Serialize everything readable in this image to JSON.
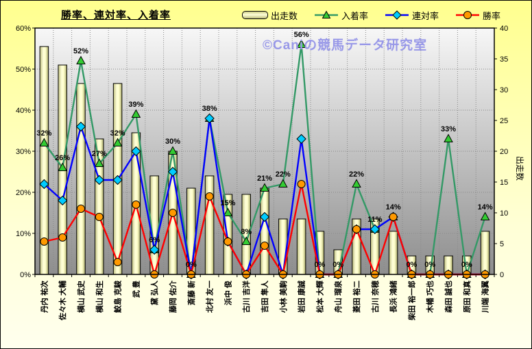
{
  "title": "勝率、連対率、入着率",
  "watermark": "©Caniの競馬データ研究室",
  "legend": {
    "items": [
      {
        "label": "出走数",
        "marker": "bar"
      },
      {
        "label": "入着率",
        "marker": "triangle"
      },
      {
        "label": "連対率",
        "marker": "diamond"
      },
      {
        "label": "勝率",
        "marker": "circle"
      }
    ]
  },
  "colors": {
    "bar_fill": "#ffffcc",
    "bar_edge": "#000000",
    "place_line": "#339966",
    "place_marker": "#33cc33",
    "quinella_line": "#0000ff",
    "quinella_marker": "#00ccff",
    "win_line": "#ff0000",
    "win_marker": "#ff9900",
    "plot_bg_top": "#f7f7f7",
    "plot_bg_bottom": "#8e8e8e",
    "page_bg": "#ffff99",
    "watermark": "#9898e8",
    "gridline": "#888888"
  },
  "chart_data": {
    "type": "bar",
    "subtype": "combo-bar-and-lines",
    "title": "勝率、連対率、入着率",
    "legend_position": "top",
    "grid": true,
    "categories": [
      "丹内 祐次",
      "佐々木 大輔",
      "横山 武史",
      "横山 和生",
      "鮫島 克駿",
      "武 豊",
      "黛 弘人",
      "藤岡 佑介",
      "斎藤 新",
      "北村 友一",
      "浜中 俊",
      "古川 吉洋",
      "吉田 隼人",
      "小林 美駒",
      "岩田 康誠",
      "松本 大輝",
      "舟山 瑠泉",
      "菱田 裕二",
      "古川 奈穂",
      "長浜 鴻緒",
      "柴田 裕一郎",
      "木幡 巧也",
      "森田 誠也",
      "原田 和真",
      "川端 海翼"
    ],
    "series": [
      {
        "name": "出走数",
        "type": "bar",
        "axis": "right",
        "marker": "bar",
        "values": [
          37,
          34,
          31,
          22,
          31,
          23,
          16,
          20,
          14,
          16,
          13,
          13,
          14,
          9,
          9,
          7,
          4,
          9,
          9,
          7,
          3,
          3,
          3,
          3,
          7
        ]
      },
      {
        "name": "入着率",
        "type": "line",
        "axis": "left",
        "marker": "triangle",
        "unit": "%",
        "values": [
          32,
          26,
          52,
          27,
          32,
          39,
          6,
          30,
          0,
          38,
          15,
          8,
          21,
          22,
          56,
          0,
          0,
          22,
          11,
          14,
          0,
          0,
          33,
          0,
          14
        ]
      },
      {
        "name": "連対率",
        "type": "line",
        "axis": "left",
        "marker": "diamond",
        "unit": "%",
        "values": [
          22,
          18,
          36,
          23,
          23,
          30,
          6,
          25,
          0,
          38,
          8,
          0,
          14,
          0,
          33,
          0,
          0,
          11,
          11,
          14,
          0,
          0,
          0,
          0,
          0
        ]
      },
      {
        "name": "勝率",
        "type": "line",
        "axis": "left",
        "marker": "circle",
        "unit": "%",
        "values": [
          8,
          9,
          16,
          14,
          3,
          17,
          0,
          15,
          0,
          19,
          8,
          0,
          7,
          0,
          22,
          0,
          0,
          11,
          0,
          14,
          0,
          0,
          0,
          0,
          0
        ]
      }
    ],
    "data_labels": [
      "32%",
      "26%",
      "52%",
      "27%",
      "32%",
      "39%",
      "6%",
      "30%",
      "0%",
      "38%",
      "15%",
      "8%",
      "21%",
      "22%",
      "56%",
      "0%",
      "0%",
      "22%",
      "11%",
      "14%",
      "0%",
      "0%",
      "33%",
      "0%",
      "14%"
    ],
    "left_axis": {
      "ticks": [
        "0%",
        "10%",
        "20%",
        "30%",
        "40%",
        "50%",
        "60%"
      ],
      "min": 0,
      "max": 60
    },
    "right_axis": {
      "title": "出走数",
      "ticks": [
        "0",
        "5",
        "10",
        "15",
        "20",
        "25",
        "30",
        "35",
        "40"
      ],
      "min": 0,
      "max": 40
    }
  }
}
